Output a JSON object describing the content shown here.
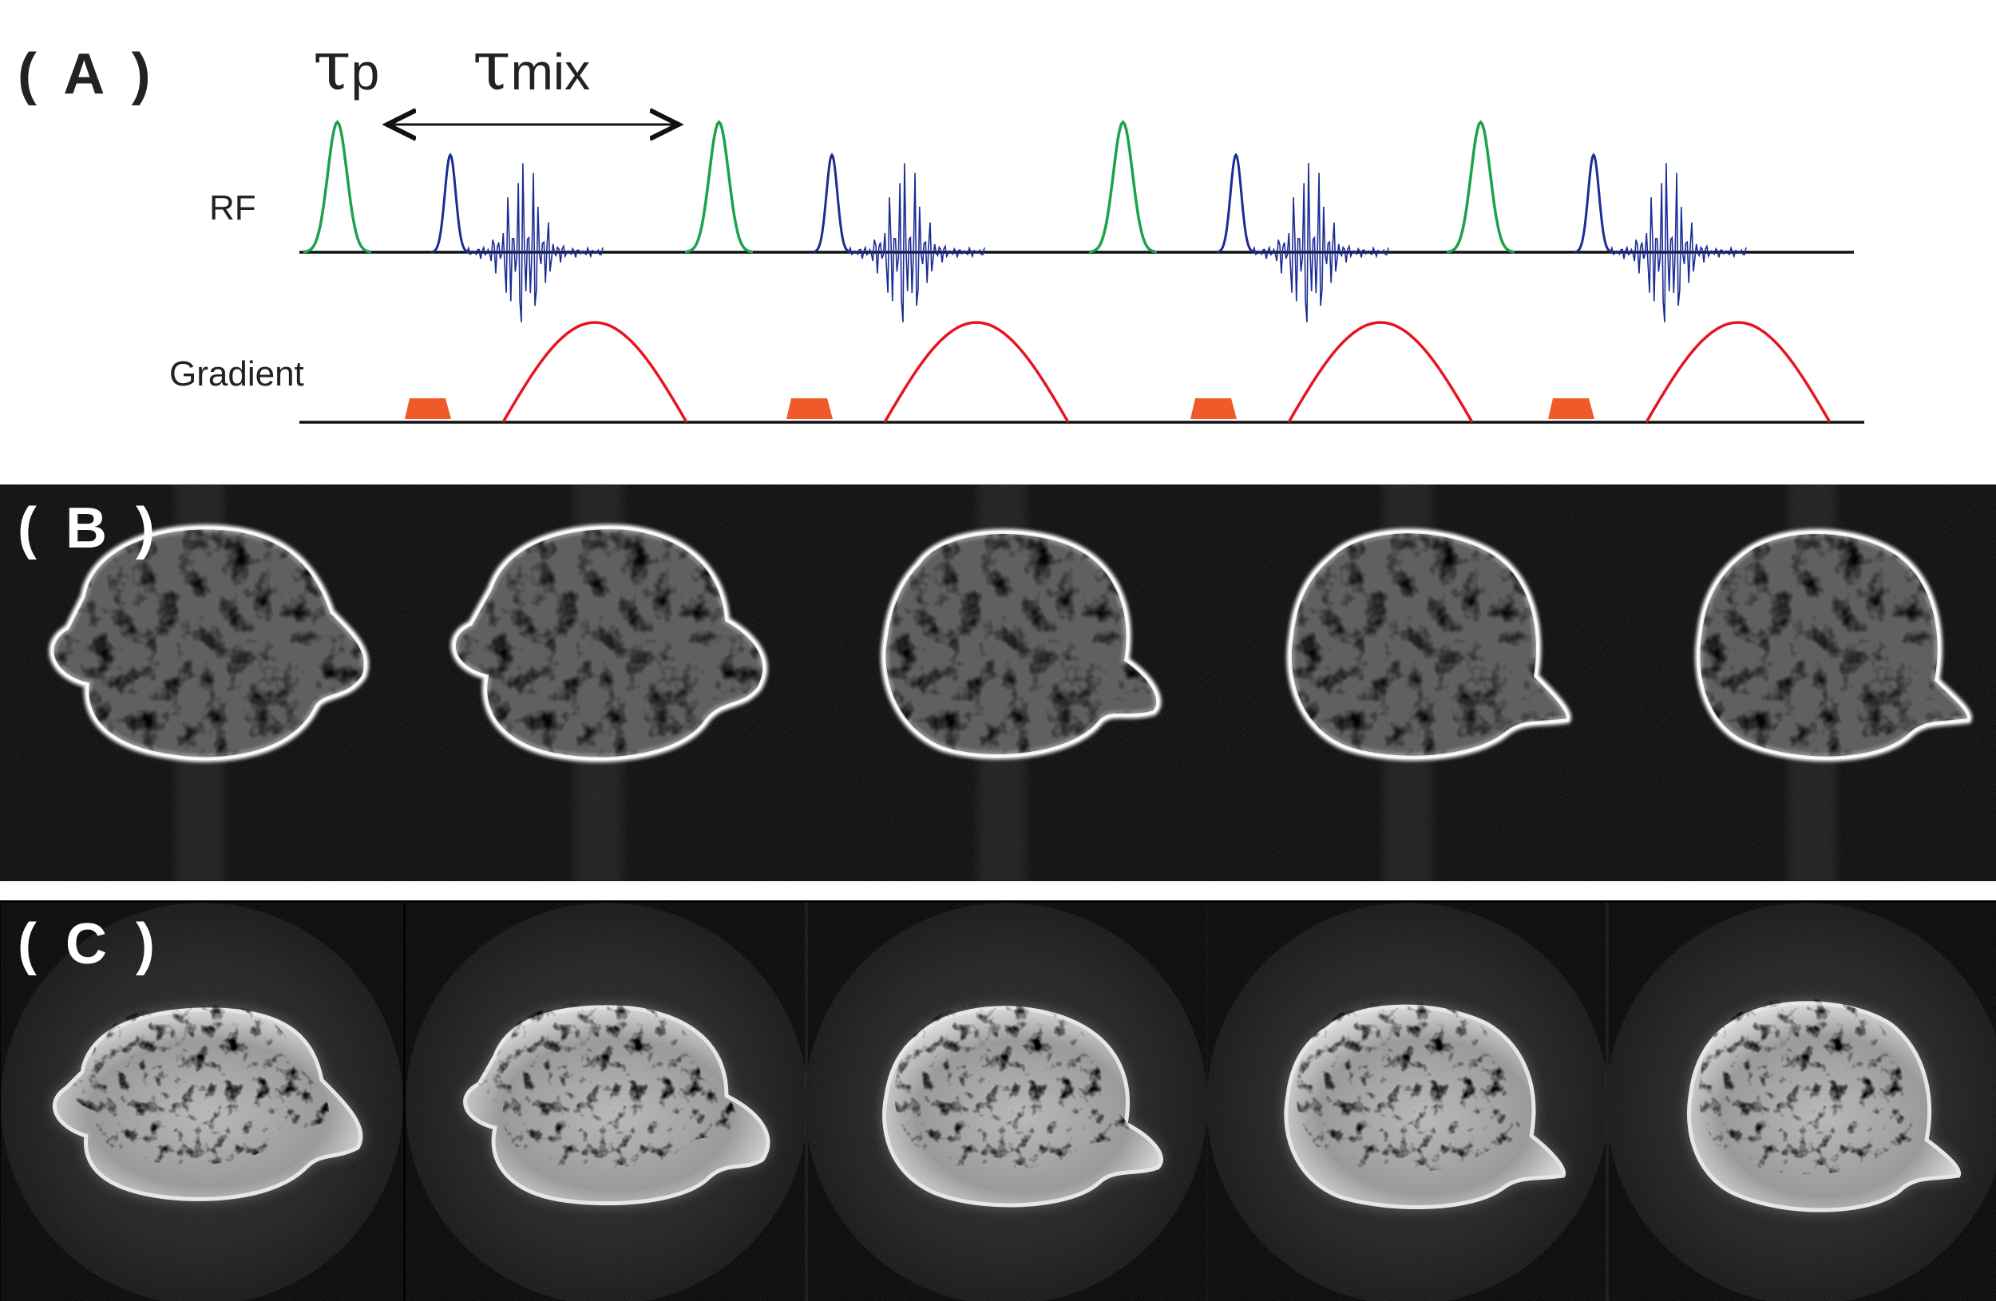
{
  "panels": {
    "a": {
      "label": "( A )"
    },
    "b": {
      "label": "( B )"
    },
    "c": {
      "label": "( C )"
    }
  },
  "pulse_sequence": {
    "tau_symbol": "τ",
    "tau_p_sub": "p",
    "tau_mix_sub": "mix",
    "rf_label": "RF",
    "gradient_label": "Gradient",
    "repetitions": 4,
    "colors": {
      "excitation": "#1aa34a",
      "readout": "#1c2c96",
      "gradient_lobe": "#e8141e",
      "gradient_block": "#f05a28",
      "baseline": "#111111"
    }
  },
  "image_rows": {
    "b_slice_count": 5,
    "c_slice_count": 5
  }
}
